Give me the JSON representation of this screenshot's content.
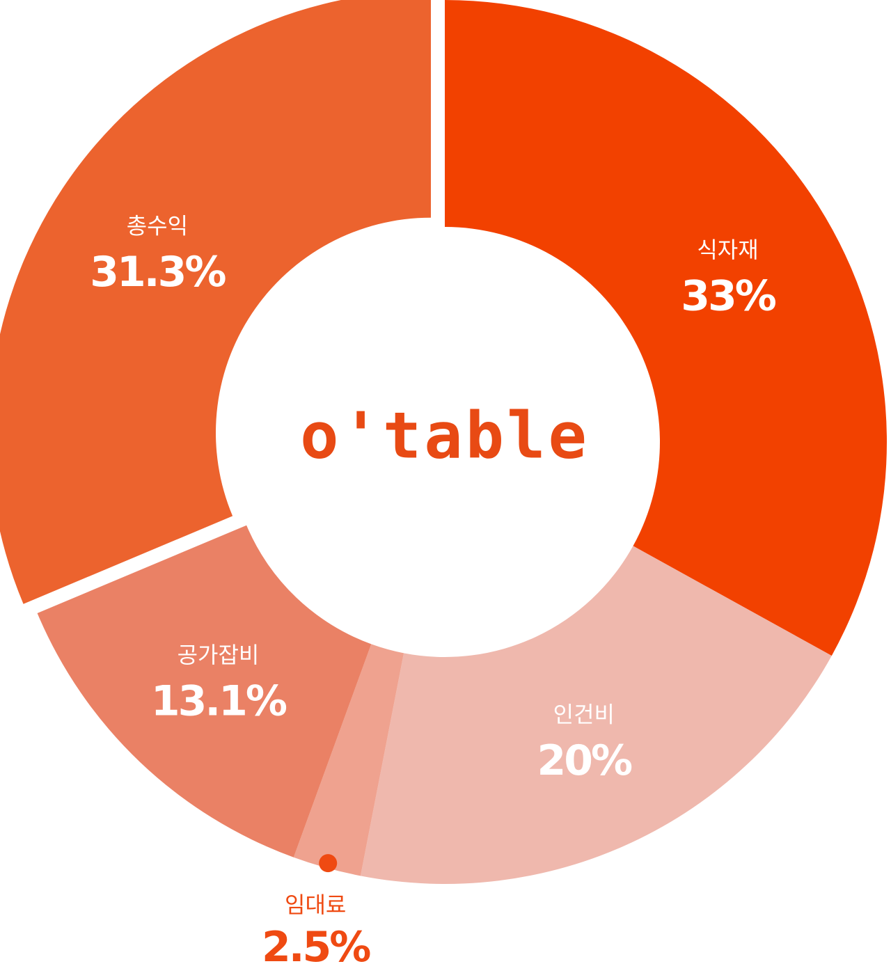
{
  "chart_data": {
    "type": "donut",
    "center_label": "o'table",
    "categories": [
      "식자재",
      "인건비",
      "임대료",
      "공가잡비",
      "총수익"
    ],
    "values": [
      33,
      20,
      2.5,
      13.1,
      31.3
    ],
    "value_labels": [
      "33%",
      "20%",
      "2.5%",
      "13.1%",
      "31.3%"
    ],
    "colors": [
      "#f24100",
      "#efb8ad",
      "#efa28f",
      "#ea8165",
      "#ec632e"
    ],
    "exploded": [
      false,
      false,
      false,
      false,
      true
    ]
  }
}
